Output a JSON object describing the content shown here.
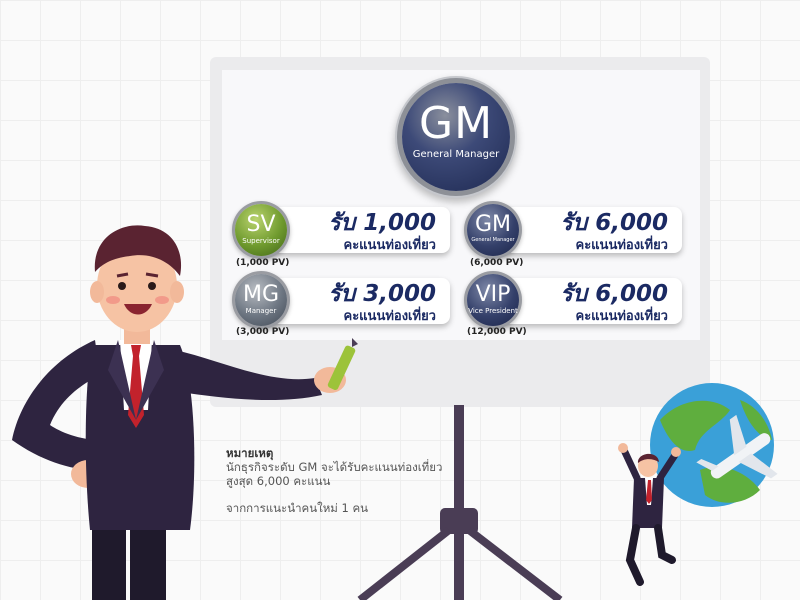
{
  "main_badge": {
    "abbr": "GM",
    "title": "General Manager"
  },
  "tiers": [
    {
      "abbr": "SV",
      "title": "Supervisor",
      "pv": "(1,000 PV)",
      "reward": "รับ 1,000",
      "reward_unit": "คะแนนท่องเที่ยว",
      "color": "green"
    },
    {
      "abbr": "GM",
      "title": "General Manager",
      "pv": "(6,000 PV)",
      "reward": "รับ 6,000",
      "reward_unit": "คะแนนท่องเที่ยว",
      "color": "navy"
    },
    {
      "abbr": "MG",
      "title": "Manager",
      "pv": "(3,000 PV)",
      "reward": "รับ 3,000",
      "reward_unit": "คะแนนท่องเที่ยว",
      "color": "grey"
    },
    {
      "abbr": "VIP",
      "title": "Vice President",
      "pv": "(12,000 PV)",
      "reward": "รับ 6,000",
      "reward_unit": "คะแนนท่องเที่ยว",
      "color": "navy"
    }
  ],
  "note": {
    "heading": "หมายเหตุ",
    "line1": "นักธุรกิจระดับ GM จะได้รับคะแนนท่องเที่ยว",
    "line2": "สูงสุด 6,000 คะแนน",
    "line3": "จากการแนะนำคนใหม่ 1 คน"
  },
  "colors": {
    "navy_text": "#1b2a63",
    "suit": "#2e2440",
    "tie": "#c2222c",
    "globe_sea": "#3aa0d8",
    "globe_land": "#5fae3e"
  }
}
